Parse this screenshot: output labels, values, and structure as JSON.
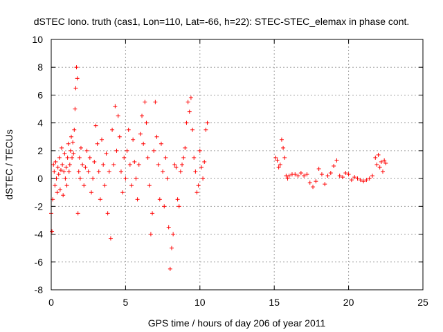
{
  "chart_data": {
    "type": "scatter",
    "title": "dSTEC Iono. truth (cas1, Lon=110, Lat=-66, h=22): STEC-STEC_elemax in phase cont.",
    "xlabel": "GPS time / hours of day 206 of year 2011",
    "ylabel": "dSTEC  / TECUs",
    "xlim": [
      0,
      25
    ],
    "ylim": [
      -8,
      10
    ],
    "xticks": [
      "0",
      "5",
      "10",
      "15",
      "20",
      "25"
    ],
    "yticks": [
      "-8",
      "-6",
      "-4",
      "-2",
      "0",
      "2",
      "4",
      "6",
      "8",
      "10"
    ],
    "grid": true,
    "marker": "plus",
    "color": "#ff0000",
    "series": [
      {
        "x": [
          0.0,
          0.05,
          0.1,
          0.15,
          0.2,
          0.25,
          0.3,
          0.35,
          0.4,
          0.45,
          0.5,
          0.55,
          0.6,
          0.65,
          0.7,
          0.75,
          0.8,
          0.85,
          0.9,
          0.95,
          1.0,
          1.05,
          1.1,
          1.15,
          1.2,
          1.25,
          1.3,
          1.35,
          1.4,
          1.45,
          1.5,
          1.55,
          1.6,
          1.65,
          1.7,
          1.75,
          1.8,
          1.85,
          1.9,
          1.95,
          2.0,
          2.1,
          2.2,
          2.3,
          2.4,
          2.5,
          2.6,
          2.7,
          2.8,
          2.9,
          3.0,
          3.1,
          3.2,
          3.3,
          3.4,
          3.5,
          3.6,
          3.7,
          3.8,
          3.9,
          4.0,
          4.1,
          4.2,
          4.3,
          4.4,
          4.5,
          4.6,
          4.7,
          4.8,
          4.9,
          5.0,
          5.1,
          5.2,
          5.3,
          5.4,
          5.5,
          5.6,
          5.7,
          5.8,
          5.9,
          6.0,
          6.1,
          6.2,
          6.3,
          6.4,
          6.5,
          6.6,
          6.7,
          6.8,
          6.9,
          7.0,
          7.1,
          7.2,
          7.3,
          7.4,
          7.5,
          7.6,
          7.7,
          7.8,
          7.9,
          8.0,
          8.1,
          8.2,
          8.3,
          8.4,
          8.5,
          8.6,
          8.7,
          8.8,
          8.9,
          9.0,
          9.1,
          9.2,
          9.3,
          9.4,
          9.5,
          9.6,
          9.7,
          9.8,
          9.9,
          10.0,
          10.1,
          10.2,
          10.3,
          10.4,
          10.5,
          15.1,
          15.2,
          15.3,
          15.4,
          15.5,
          15.6,
          15.7,
          15.8,
          15.9,
          16.0,
          16.2,
          16.4,
          16.6,
          16.8,
          17.0,
          17.2,
          17.4,
          17.6,
          17.8,
          18.0,
          18.2,
          18.4,
          18.6,
          18.8,
          19.0,
          19.2,
          19.4,
          19.6,
          19.8,
          20.0,
          20.2,
          20.4,
          20.6,
          20.8,
          21.0,
          21.2,
          21.4,
          21.6,
          21.8,
          21.9,
          22.0,
          22.1,
          22.2,
          22.3,
          22.4,
          22.5
        ],
        "y": [
          -2.5,
          -3.8,
          -1.5,
          1.0,
          0.5,
          -0.5,
          1.2,
          0.0,
          -1.0,
          0.8,
          0.3,
          1.5,
          -0.8,
          0.6,
          2.2,
          1.0,
          -1.2,
          0.5,
          1.8,
          0.0,
          0.8,
          -0.5,
          1.5,
          2.5,
          0.5,
          1.0,
          2.0,
          3.0,
          1.5,
          2.6,
          1.8,
          3.5,
          5.0,
          6.5,
          8.0,
          7.2,
          -2.5,
          0.5,
          1.5,
          0.0,
          2.2,
          1.0,
          -0.5,
          0.8,
          2.0,
          0.5,
          1.5,
          -1.0,
          0.0,
          1.2,
          3.8,
          2.5,
          0.5,
          -1.5,
          2.8,
          1.0,
          -0.5,
          1.8,
          -2.5,
          0.5,
          -4.3,
          3.5,
          1.0,
          5.2,
          2.0,
          4.5,
          3.0,
          0.5,
          -1.0,
          1.5,
          0.0,
          2.0,
          3.5,
          1.0,
          -0.5,
          2.8,
          1.2,
          0.0,
          -1.5,
          1.0,
          3.2,
          4.5,
          2.5,
          5.5,
          4.0,
          1.5,
          -0.5,
          -4.0,
          -2.5,
          2.0,
          5.5,
          3.0,
          1.0,
          -1.5,
          2.5,
          0.5,
          -2.0,
          1.5,
          0.0,
          -3.5,
          -6.5,
          -5.0,
          -4.0,
          1.0,
          0.8,
          -1.5,
          -2.0,
          0.5,
          1.0,
          1.5,
          2.2,
          4.0,
          5.5,
          4.8,
          5.8,
          3.5,
          1.5,
          0.5,
          -1.0,
          -0.5,
          2.0,
          0.8,
          0.0,
          1.2,
          3.5,
          4.0,
          1.5,
          1.3,
          0.8,
          1.0,
          2.8,
          2.2,
          1.5,
          0.2,
          0.0,
          0.2,
          0.3,
          0.3,
          0.2,
          0.4,
          0.2,
          0.3,
          -0.3,
          -0.6,
          -0.2,
          0.7,
          0.3,
          -0.4,
          0.2,
          0.4,
          0.9,
          1.3,
          0.2,
          0.1,
          0.4,
          0.3,
          -0.1,
          0.1,
          0.0,
          -0.1,
          -0.2,
          -0.1,
          0.0,
          0.2,
          1.5,
          1.0,
          1.7,
          0.8,
          1.2,
          0.5,
          1.3,
          1.1
        ]
      }
    ]
  }
}
